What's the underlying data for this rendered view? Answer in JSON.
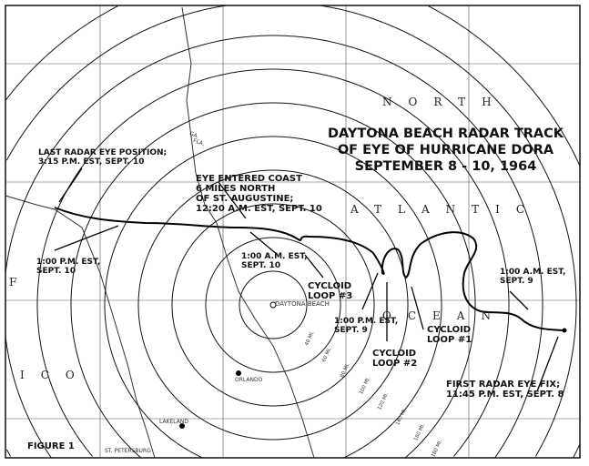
{
  "title_lines": [
    "DAYTONA BEACH RADAR TRACK",
    "OF EYE OF HURRICANE DORA",
    "SEPTEMBER 8 - 10, 1964"
  ],
  "figure_label": "FIGURE 1",
  "sea_labels": {
    "north": "NORTH",
    "atlantic": "ATLANTIC",
    "ocean": "OCEAN",
    "gulf_f": "F",
    "gulf_ico": "ICO"
  },
  "state_labels": {
    "ga": "GA.",
    "fla": "FLA."
  },
  "annotations": {
    "last_fix": "LAST RADAR EYE POSITION;\n3:15 P.M. EST, SEPT. 10",
    "coast_entry": "EYE ENTERED COAST\n6 MILES NORTH\nOF ST. AUGUSTINE;\n12:20 A.M. EST, SEPT. 10",
    "pm_sept10": "1:00 P.M. EST,\nSEPT. 10",
    "am_sept10": "1:00 A.M. EST,\nSEPT. 10",
    "loop3": "CYCLOID\nLOOP #3",
    "pm_sept9": "1:00 P.M. EST,\nSEPT. 9",
    "loop2": "CYCLOID\nLOOP #2",
    "loop1": "CYCLOID\nLOOP #1",
    "am_sept9": "1:00 A.M. EST,\nSEPT. 9",
    "first_fix": "FIRST RADAR EYE FIX;\n11:45 P.M. EST, SEPT. 8"
  },
  "cities": {
    "daytona": "DAYTONA BEACH",
    "orlando": "ORLANDO",
    "lakeland": "LAKELAND",
    "st_petersburg": "ST. PETERSBURG"
  },
  "range_rings": [
    "40 MI.",
    "60 MI.",
    "80 MI.",
    "100 MI.",
    "120 MI.",
    "140 MI.",
    "160 MI.",
    "180 MI."
  ],
  "colors": {
    "ink": "#111111",
    "paper": "#ffffff"
  }
}
